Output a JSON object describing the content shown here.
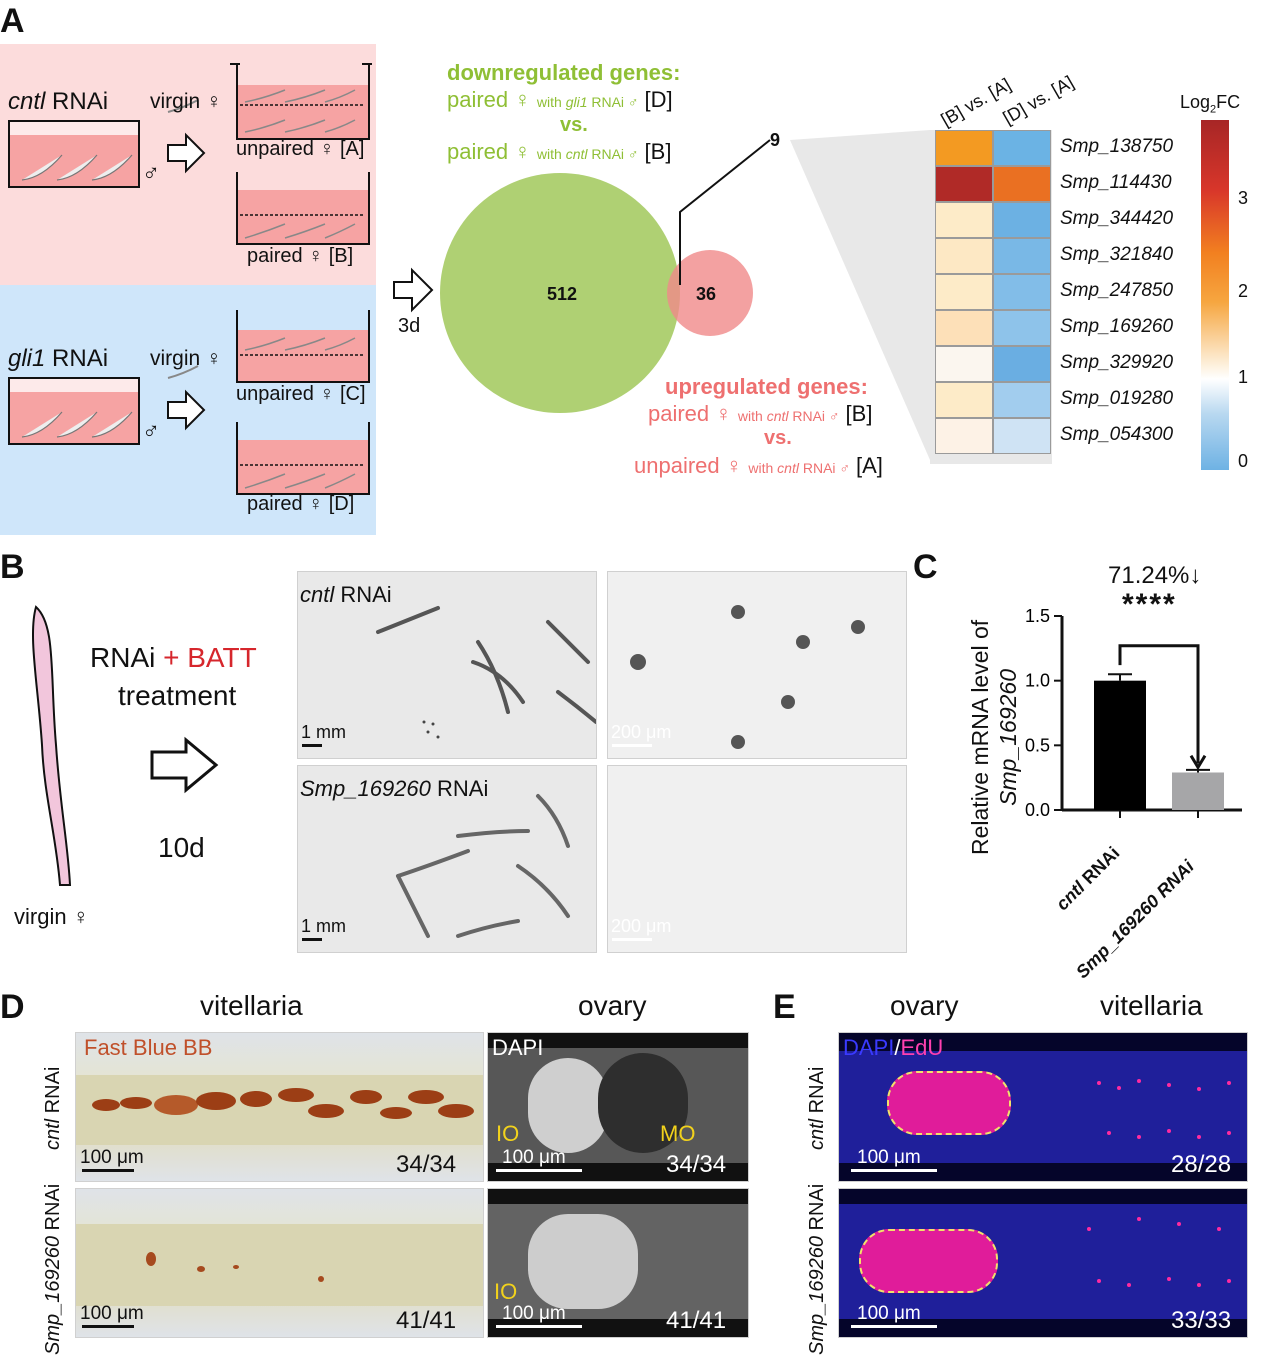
{
  "panels": {
    "A": "A",
    "B": "B",
    "C": "C",
    "D": "D",
    "E": "E"
  },
  "panelA": {
    "cntl_label_italic": "cntl",
    "cntl_label_rest": " RNAi",
    "gli1_label_italic": "gli1",
    "gli1_label_rest": " RNAi",
    "virgin": "virgin ♀",
    "male": "♂",
    "unpaired_A": "unpaired ♀ [A]",
    "paired_B": "paired ♀ [B]",
    "unpaired_C": "unpaired ♀ [C]",
    "paired_D": "paired ♀ [D]",
    "time": "3d",
    "down_title": "downregulated genes:",
    "down_l1_a": "paired ♀ ",
    "down_l1_b": "with ",
    "down_l1_c": "gli1",
    "down_l1_d": " RNAi ♂",
    "down_l1_e": " [D]",
    "down_vs": "vs.",
    "down_l3_a": "paired ♀ ",
    "down_l3_b": "with ",
    "down_l3_c": "cntl",
    "down_l3_d": " RNAi ♂",
    "down_l3_e": " [B]",
    "venn_left": "512",
    "venn_right": "36",
    "venn_overlap": "9",
    "up_title": "upregulated genes:",
    "up_l1_a": "paired ♀ ",
    "up_l1_b": "with ",
    "up_l1_c": "cntl",
    "up_l1_d": " RNAi ♂",
    "up_l1_e": " [B]",
    "up_vs": "vs.",
    "up_l3_a": "unpaired ♀ ",
    "up_l3_b": "with ",
    "up_l3_c": "cntl",
    "up_l3_d": " RNAi ♂",
    "up_l3_e": " [A]",
    "colors": {
      "green": "#9cc440",
      "red": "#ee6e6e",
      "pink_bg": "#fcdcdc",
      "blue_bg": "#cfe6fa"
    }
  },
  "heatmap": {
    "col1": "[B] vs. [A]",
    "col2": "[D] vs. [A]",
    "legend_title_a": "Log",
    "legend_title_sub": "2",
    "legend_title_b": "FC",
    "legend_ticks": [
      "3",
      "2",
      "1",
      "0"
    ],
    "genes": [
      "Smp_138750",
      "Smp_114430",
      "Smp_344420",
      "Smp_321840",
      "Smp_247850",
      "Smp_169260",
      "Smp_329920",
      "Smp_019280",
      "Smp_054300"
    ],
    "colB": [
      "#f39a22",
      "#b02a27",
      "#fdebc8",
      "#fde8c4",
      "#fdebc8",
      "#fde0b8",
      "#fbf6ef",
      "#fdebc8",
      "#fdf2e6"
    ],
    "colD": [
      "#6bb3e4",
      "#ea7022",
      "#6cb1e3",
      "#79b8e6",
      "#82bde8",
      "#8ec3ea",
      "#6aaee2",
      "#a2cdee",
      "#cfe3f4"
    ]
  },
  "panelB": {
    "rnai": "RNAi ",
    "batt": "+ BATT",
    "treatment": "treatment",
    "days": "10d",
    "virgin": "virgin ♀",
    "cntl_italic": "cntl",
    "cntl_rest": " RNAi",
    "smp_italic": "Smp_169260",
    "smp_rest": " RNAi",
    "sb1": "1 mm",
    "sb2": "200 μm",
    "sb3": "1 mm",
    "sb4": "200 μm"
  },
  "chart_data": {
    "type": "bar",
    "categories": [
      "cntl RNAi",
      "Smp_169260 RNAi"
    ],
    "values": [
      1.0,
      0.29
    ],
    "errors": [
      0.05,
      0.02
    ],
    "colors": [
      "#000000",
      "#a6a6a8"
    ],
    "ylabel": "Relative mRNA level of",
    "ylabel_italic": "Smp_169260",
    "ylim": [
      0,
      1.5
    ],
    "yticks": [
      "0.0",
      "0.5",
      "1.0",
      "1.5"
    ],
    "annotation_pct": "71.24%↓",
    "annotation_sig": "****",
    "cat1_italic": "cntl",
    "cat1_rest": " RNAi",
    "cat2": "Smp_169260 RNAi"
  },
  "panelD": {
    "vitellaria": "vitellaria",
    "ovary": "ovary",
    "fastblue": "Fast Blue BB",
    "dapi": "DAPI",
    "io": "IO",
    "mo": "MO",
    "row1_italic": "cntl",
    "row1_rest": " RNAi",
    "row2_italic": "Smp_",
    "row2_italic2": "169260",
    "row2_rest": " RNAi",
    "sb": "100 μm",
    "n1": "34/34",
    "n2": "34/34",
    "n3": "41/41",
    "n4": "41/41"
  },
  "panelE": {
    "ovary": "ovary",
    "vitellaria": "vitellaria",
    "dapi": "DAPI",
    "slash": "/",
    "edu": "EdU",
    "row1_italic": "cntl",
    "row1_rest": " RNAi",
    "row2_italic": "Smp_",
    "row2_italic2": "169260",
    "row2_rest": " RNAi",
    "sb": "100 μm",
    "n1": "28/28",
    "n2": "33/33"
  }
}
